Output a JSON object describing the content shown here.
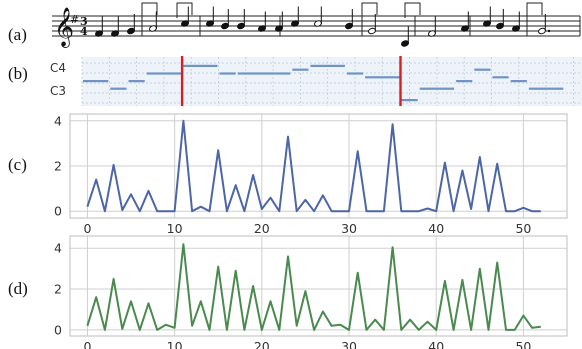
{
  "panel_labels": [
    "(a)",
    "(b)",
    "(c)",
    "(d)"
  ],
  "score": {
    "key_signature": "#",
    "time_signature": [
      "3",
      "4"
    ]
  },
  "piano_roll": {
    "pitch_labels": [
      "C4",
      "C3"
    ],
    "boundary_markers": [
      11,
      35
    ],
    "notes": [
      {
        "t0": 0,
        "t1": 3,
        "p": 5
      },
      {
        "t0": 3,
        "t1": 5,
        "p": 3
      },
      {
        "t0": 5,
        "t1": 7,
        "p": 5
      },
      {
        "t0": 7,
        "t1": 11,
        "p": 7
      },
      {
        "t0": 11,
        "t1": 15,
        "p": 9
      },
      {
        "t0": 15,
        "t1": 17,
        "p": 7
      },
      {
        "t0": 17,
        "t1": 23,
        "p": 7
      },
      {
        "t0": 23,
        "t1": 25,
        "p": 8
      },
      {
        "t0": 25,
        "t1": 29,
        "p": 9
      },
      {
        "t0": 29,
        "t1": 31,
        "p": 7
      },
      {
        "t0": 31,
        "t1": 35,
        "p": 6
      },
      {
        "t0": 35,
        "t1": 37,
        "p": 0
      },
      {
        "t0": 37,
        "t1": 41,
        "p": 3
      },
      {
        "t0": 41,
        "t1": 43,
        "p": 5
      },
      {
        "t0": 43,
        "t1": 45,
        "p": 8
      },
      {
        "t0": 45,
        "t1": 47,
        "p": 6
      },
      {
        "t0": 47,
        "t1": 49,
        "p": 5
      },
      {
        "t0": 49,
        "t1": 53,
        "p": 3
      }
    ]
  },
  "chart_data": [
    {
      "type": "line",
      "panel": "(c)",
      "color": "#4c66a8",
      "x": [
        0,
        1,
        2,
        3,
        4,
        5,
        6,
        7,
        8,
        9,
        10,
        11,
        12,
        13,
        14,
        15,
        16,
        17,
        18,
        19,
        20,
        21,
        22,
        23,
        24,
        25,
        26,
        27,
        28,
        29,
        30,
        31,
        32,
        33,
        34,
        35,
        36,
        37,
        38,
        39,
        40,
        41,
        42,
        43,
        44,
        45,
        46,
        47,
        48,
        49,
        50,
        51,
        52
      ],
      "values": [
        0.2,
        1.4,
        0,
        2.05,
        0.05,
        0.75,
        0,
        0.9,
        0,
        0,
        0,
        4.0,
        0,
        0.2,
        0,
        2.7,
        0,
        1.15,
        0,
        1.6,
        0.1,
        0.6,
        0,
        3.3,
        0,
        0.5,
        0,
        0.7,
        0,
        0,
        0,
        2.65,
        0,
        0,
        0,
        3.85,
        0,
        0,
        0,
        0.12,
        0,
        2.15,
        0,
        1.8,
        0.1,
        2.4,
        0,
        2.1,
        0,
        0,
        0.15,
        0,
        0
      ],
      "xlim": [
        -2,
        55
      ],
      "ylim": [
        -0.3,
        4.3
      ],
      "xticks": [
        0,
        10,
        20,
        30,
        40,
        50
      ],
      "yticks": [
        0,
        2,
        4
      ]
    },
    {
      "type": "line",
      "panel": "(d)",
      "color": "#4a8a4e",
      "x": [
        0,
        1,
        2,
        3,
        4,
        5,
        6,
        7,
        8,
        9,
        10,
        11,
        12,
        13,
        14,
        15,
        16,
        17,
        18,
        19,
        20,
        21,
        22,
        23,
        24,
        25,
        26,
        27,
        28,
        29,
        30,
        31,
        32,
        33,
        34,
        35,
        36,
        37,
        38,
        39,
        40,
        41,
        42,
        43,
        44,
        45,
        46,
        47,
        48,
        49,
        50,
        51,
        52
      ],
      "values": [
        0.2,
        1.6,
        0,
        2.5,
        0.05,
        1.4,
        0,
        1.3,
        0,
        0.25,
        0.1,
        4.2,
        0.2,
        1.4,
        0,
        3.1,
        0,
        2.9,
        0,
        2.15,
        0,
        1.4,
        0,
        3.6,
        0.2,
        1.9,
        0,
        0.9,
        0.2,
        0.25,
        0,
        2.8,
        0,
        0.5,
        0,
        4.05,
        0,
        0.5,
        0,
        0.4,
        0,
        2.4,
        0,
        2.45,
        0,
        3.0,
        0,
        3.3,
        0,
        0,
        0.7,
        0.1,
        0.15
      ],
      "xlim": [
        -2,
        55
      ],
      "ylim": [
        -0.3,
        4.6
      ],
      "xticks": [
        0,
        10,
        20,
        30,
        40,
        50
      ],
      "yticks": [
        0,
        2,
        4
      ]
    }
  ]
}
